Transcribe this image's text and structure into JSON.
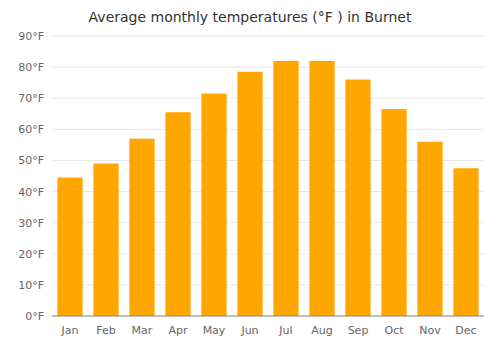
{
  "chart_data": {
    "type": "bar",
    "title": "Average monthly temperatures (°F ) in Burnet",
    "categories": [
      "Jan",
      "Feb",
      "Mar",
      "Apr",
      "May",
      "Jun",
      "Jul",
      "Aug",
      "Sep",
      "Oct",
      "Nov",
      "Dec"
    ],
    "values": [
      44.5,
      49.0,
      57.0,
      65.5,
      71.5,
      78.5,
      82.0,
      82.0,
      76.0,
      66.5,
      56.0,
      47.5
    ],
    "color": "#ffa600",
    "ylim": [
      0,
      90
    ],
    "yticks": [
      {
        "value": 0,
        "label": "0°F"
      },
      {
        "value": 10,
        "label": "10°F"
      },
      {
        "value": 20,
        "label": "20°F"
      },
      {
        "value": 30,
        "label": "30°F"
      },
      {
        "value": 40,
        "label": "40°F"
      },
      {
        "value": 50,
        "label": "50°F"
      },
      {
        "value": 60,
        "label": "60°F"
      },
      {
        "value": 70,
        "label": "70°F"
      },
      {
        "value": 80,
        "label": "80°F"
      },
      {
        "value": 90,
        "label": "90°F"
      }
    ],
    "grid": true
  }
}
